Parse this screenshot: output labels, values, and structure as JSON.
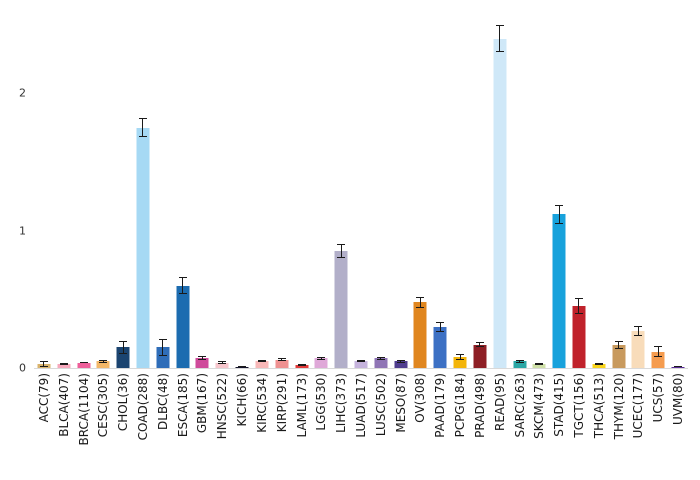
{
  "chart_data": {
    "type": "bar",
    "title": "",
    "xlabel": "",
    "ylabel": "",
    "ylim": [
      0,
      2.55
    ],
    "yticks": [
      0,
      1,
      2
    ],
    "grid": false,
    "legend": "none",
    "error_bars": true,
    "error_bar_color": "#1a1a1a",
    "categories": [
      "ACC(79)",
      "BLCA(407)",
      "BRCA(1104)",
      "CESC(305)",
      "CHOL(36)",
      "COAD(288)",
      "DLBC(48)",
      "ESCA(185)",
      "GBM(167)",
      "HNSC(522)",
      "KICH(66)",
      "KIRC(534)",
      "KIRP(291)",
      "LAML(173)",
      "LGG(530)",
      "LIHC(373)",
      "LUAD(517)",
      "LUSC(502)",
      "MESO(87)",
      "OV(308)",
      "PAAD(179)",
      "PCPG(184)",
      "PRAD(498)",
      "READ(95)",
      "SARC(263)",
      "SKCM(473)",
      "STAD(415)",
      "TGCT(156)",
      "THCA(513)",
      "THYM(120)",
      "UCEC(177)",
      "UCS(57)",
      "UVM(80)"
    ],
    "values": [
      0.03,
      0.03,
      0.04,
      0.05,
      0.15,
      1.75,
      0.15,
      0.6,
      0.07,
      0.04,
      0.01,
      0.05,
      0.06,
      0.02,
      0.07,
      0.85,
      0.05,
      0.07,
      0.05,
      0.48,
      0.3,
      0.08,
      0.17,
      2.4,
      0.05,
      0.03,
      1.12,
      0.45,
      0.03,
      0.17,
      0.27,
      0.12,
      0.01
    ],
    "errors": [
      0.02,
      0.01,
      0.005,
      0.012,
      0.05,
      0.07,
      0.06,
      0.06,
      0.015,
      0.01,
      0.004,
      0.008,
      0.012,
      0.006,
      0.012,
      0.05,
      0.008,
      0.012,
      0.012,
      0.04,
      0.035,
      0.02,
      0.02,
      0.1,
      0.012,
      0.006,
      0.07,
      0.06,
      0.008,
      0.03,
      0.035,
      0.04,
      0.004
    ],
    "colors": [
      "#d9b36c",
      "#f6a8bc",
      "#ee5f9a",
      "#f3b768",
      "#1b4470",
      "#a6d9f4",
      "#2f6db8",
      "#1c6cb0",
      "#cf4a9b",
      "#f6c6cc",
      "#14142b",
      "#f8b8b8",
      "#ef9191",
      "#e23b3b",
      "#dfa8d8",
      "#b2afc9",
      "#c6b4dd",
      "#8f75b5",
      "#4f3d8f",
      "#e0861f",
      "#3c70c4",
      "#f3b50a",
      "#8e1f25",
      "#cfe8f8",
      "#2aa7a5",
      "#cfe0a8",
      "#18a2dc",
      "#c0222b",
      "#f8d41c",
      "#c89a5e",
      "#f8dcba",
      "#f59c4f",
      "#5b2f96"
    ]
  }
}
